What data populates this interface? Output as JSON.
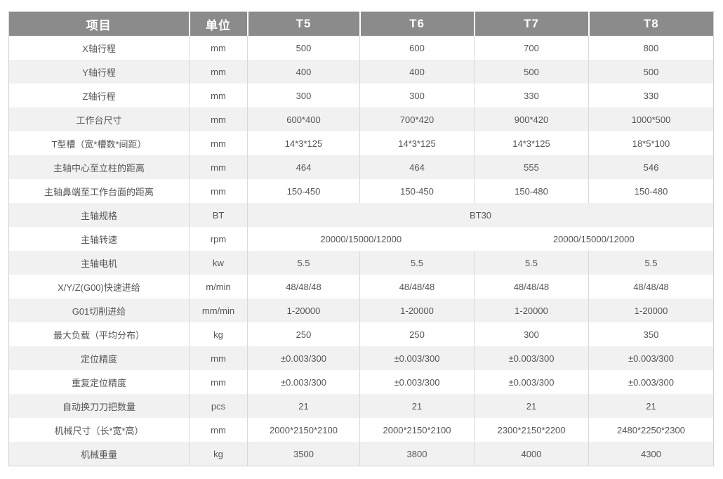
{
  "colors": {
    "header_bg": "#8b8b8b",
    "header_text": "#ffffff",
    "row_stripe": "#f1f1f1",
    "row_plain": "#ffffff",
    "outer_border": "#d2d2d2",
    "divider": "#d9d9d9",
    "text": "#555555"
  },
  "table": {
    "columns": [
      "项目",
      "单位",
      "T5",
      "T6",
      "T7",
      "T8"
    ],
    "rows": [
      {
        "label": "X轴行程",
        "unit": "mm",
        "values": [
          "500",
          "600",
          "700",
          "800"
        ]
      },
      {
        "label": "Y轴行程",
        "unit": "mm",
        "values": [
          "400",
          "400",
          "500",
          "500"
        ]
      },
      {
        "label": "Z轴行程",
        "unit": "mm",
        "values": [
          "300",
          "300",
          "330",
          "330"
        ]
      },
      {
        "label": "工作台尺寸",
        "unit": "mm",
        "values": [
          "600*400",
          "700*420",
          "900*420",
          "1000*500"
        ]
      },
      {
        "label": "T型槽（宽*槽数*间距）",
        "unit": "mm",
        "values": [
          "14*3*125",
          "14*3*125",
          "14*3*125",
          "18*5*100"
        ]
      },
      {
        "label": "主轴中心至立柱的距离",
        "unit": "mm",
        "values": [
          "464",
          "464",
          "555",
          "546"
        ]
      },
      {
        "label": "主轴鼻端至工作台面的距离",
        "unit": "mm",
        "values": [
          "150-450",
          "150-450",
          "150-480",
          "150-480"
        ]
      },
      {
        "label": "主轴规格",
        "unit": "BT",
        "values": [
          "BT30"
        ],
        "colspan": 4
      },
      {
        "label": "主轴转速",
        "unit": "rpm",
        "values": [
          "20000/15000/12000",
          "20000/15000/12000"
        ],
        "colspan": 2,
        "seamless": true
      },
      {
        "label": "主轴电机",
        "unit": "kw",
        "values": [
          "5.5",
          "5.5",
          "5.5",
          "5.5"
        ]
      },
      {
        "label": "X/Y/Z(G00)快速进给",
        "unit": "m/min",
        "values": [
          "48/48/48",
          "48/48/48",
          "48/48/48",
          "48/48/48"
        ]
      },
      {
        "label": "G01切削进给",
        "unit": "mm/min",
        "values": [
          "1-20000",
          "1-20000",
          "1-20000",
          "1-20000"
        ]
      },
      {
        "label": "最大负载（平均分布）",
        "unit": "kg",
        "values": [
          "250",
          "250",
          "300",
          "350"
        ]
      },
      {
        "label": "定位精度",
        "unit": "mm",
        "values": [
          "±0.003/300",
          "±0.003/300",
          "±0.003/300",
          "±0.003/300"
        ]
      },
      {
        "label": "重复定位精度",
        "unit": "mm",
        "values": [
          "±0.003/300",
          "±0.003/300",
          "±0.003/300",
          "±0.003/300"
        ]
      },
      {
        "label": "自动换刀刀把数量",
        "unit": "pcs",
        "values": [
          "21",
          "21",
          "21",
          "21"
        ]
      },
      {
        "label": "机械尺寸（长*宽*高）",
        "unit": "mm",
        "values": [
          "2000*2150*2100",
          "2000*2150*2100",
          "2300*2150*2200",
          "2480*2250*2300"
        ]
      },
      {
        "label": "机械重量",
        "unit": "kg",
        "values": [
          "3500",
          "3800",
          "4000",
          "4300"
        ]
      }
    ]
  }
}
